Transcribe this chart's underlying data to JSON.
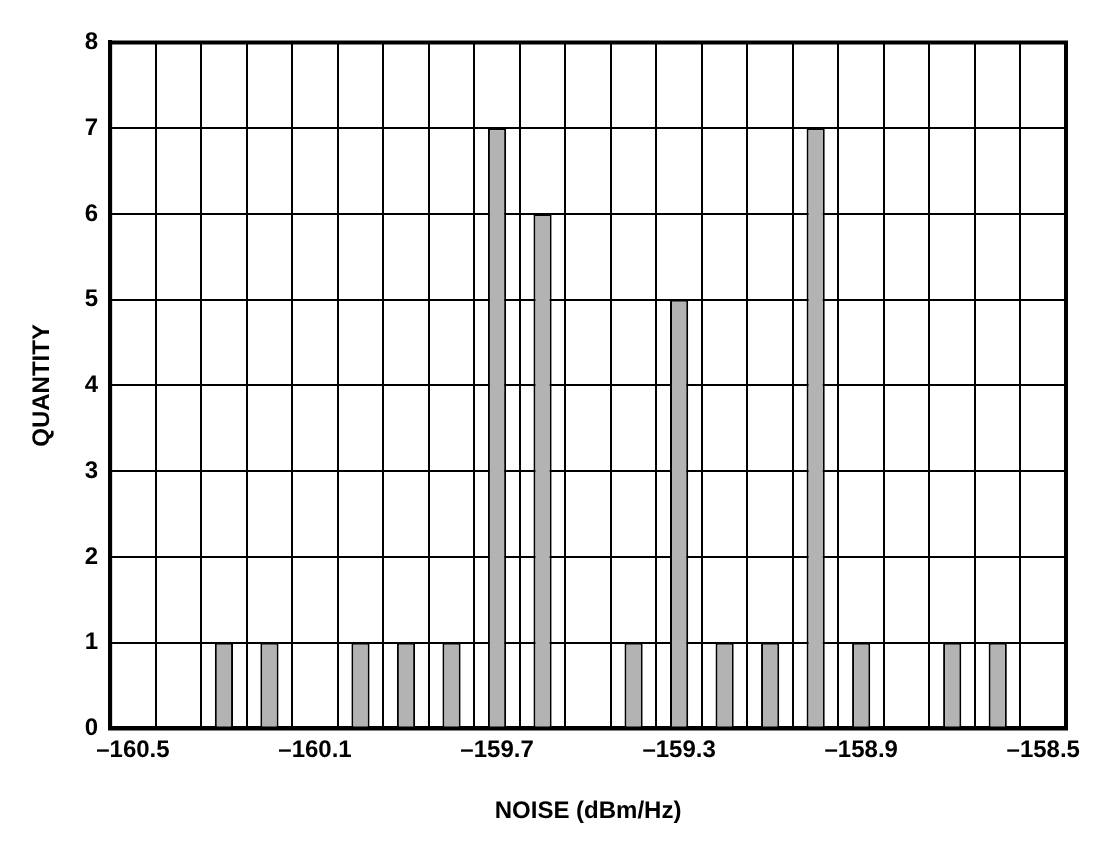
{
  "chart_data": {
    "type": "bar",
    "xlabel": "NOISE (dBm/Hz)",
    "ylabel": "QUANTITY",
    "categories": [
      "–160.5",
      null,
      null,
      null,
      "–160.1",
      null,
      null,
      null,
      "–159.7",
      null,
      null,
      null,
      "–159.3",
      null,
      null,
      null,
      "–158.9",
      null,
      null,
      null,
      "–158.5"
    ],
    "values": [
      0,
      0,
      1,
      1,
      0,
      1,
      1,
      1,
      7,
      6,
      0,
      1,
      5,
      1,
      1,
      7,
      1,
      0,
      1,
      1,
      0
    ],
    "color": "#b3b3b3",
    "ylim": [
      0,
      8
    ],
    "yticks": [
      0,
      1,
      2,
      3,
      4,
      5,
      6,
      7,
      8
    ],
    "grid": true,
    "legend": false
  }
}
